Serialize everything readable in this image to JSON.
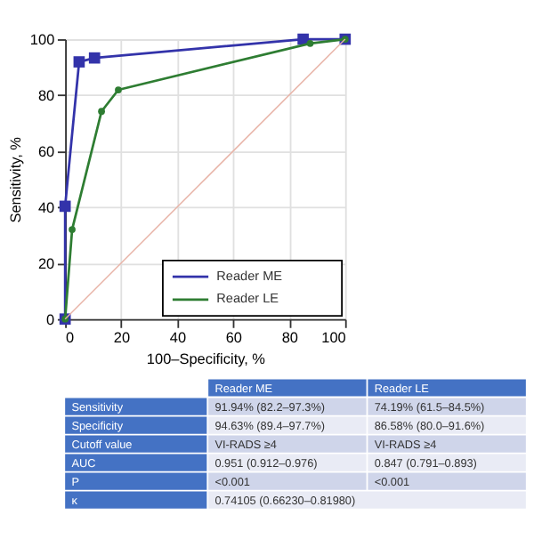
{
  "chart_data": {
    "type": "line",
    "xlabel": "100–Specificity, %",
    "ylabel": "Sensitivity, %",
    "xlim": [
      0,
      100
    ],
    "ylim": [
      0,
      100
    ],
    "xticks": [
      0,
      20,
      40,
      60,
      80,
      100
    ],
    "yticks": [
      0,
      20,
      40,
      60,
      80,
      100
    ],
    "grid": true,
    "legend": "bottom right",
    "series": [
      {
        "name": "Reader ME",
        "color": "#3333aa",
        "marker": "square",
        "x": [
          0,
          0,
          5,
          10.5,
          85,
          100
        ],
        "values": [
          0,
          40.3,
          91.9,
          93.3,
          100,
          100
        ]
      },
      {
        "name": "Reader LE",
        "color": "#2e7d32",
        "marker": "circle",
        "x": [
          0,
          2.5,
          13,
          19,
          87.5,
          100
        ],
        "values": [
          0,
          32,
          74.2,
          81.9,
          98.5,
          100
        ]
      },
      {
        "type": "line",
        "color": "#e8b4a8",
        "marker": "none",
        "x": [
          0,
          100
        ],
        "values": [
          0,
          100
        ]
      }
    ],
    "annotations": [
      "Reader ME",
      "Reader LE",
      "Sensitivity",
      "91.94% (82.2–97.3%)",
      "74.19% (61.5–84.5%)",
      "Specificity",
      "94.63% (89.4–97.7%)",
      "86.58% (80.0–91.6%)",
      "Cutoff value",
      "VI-RADS ≥4",
      "VI-RADS ≥4",
      "AUC",
      "0.951 (0.912–0.976)",
      "0.847 (0.791–0.893)",
      "P",
      "<0.001",
      "<0.001",
      "κ",
      "0.74105 (0.66230–0.81980)"
    ]
  }
}
